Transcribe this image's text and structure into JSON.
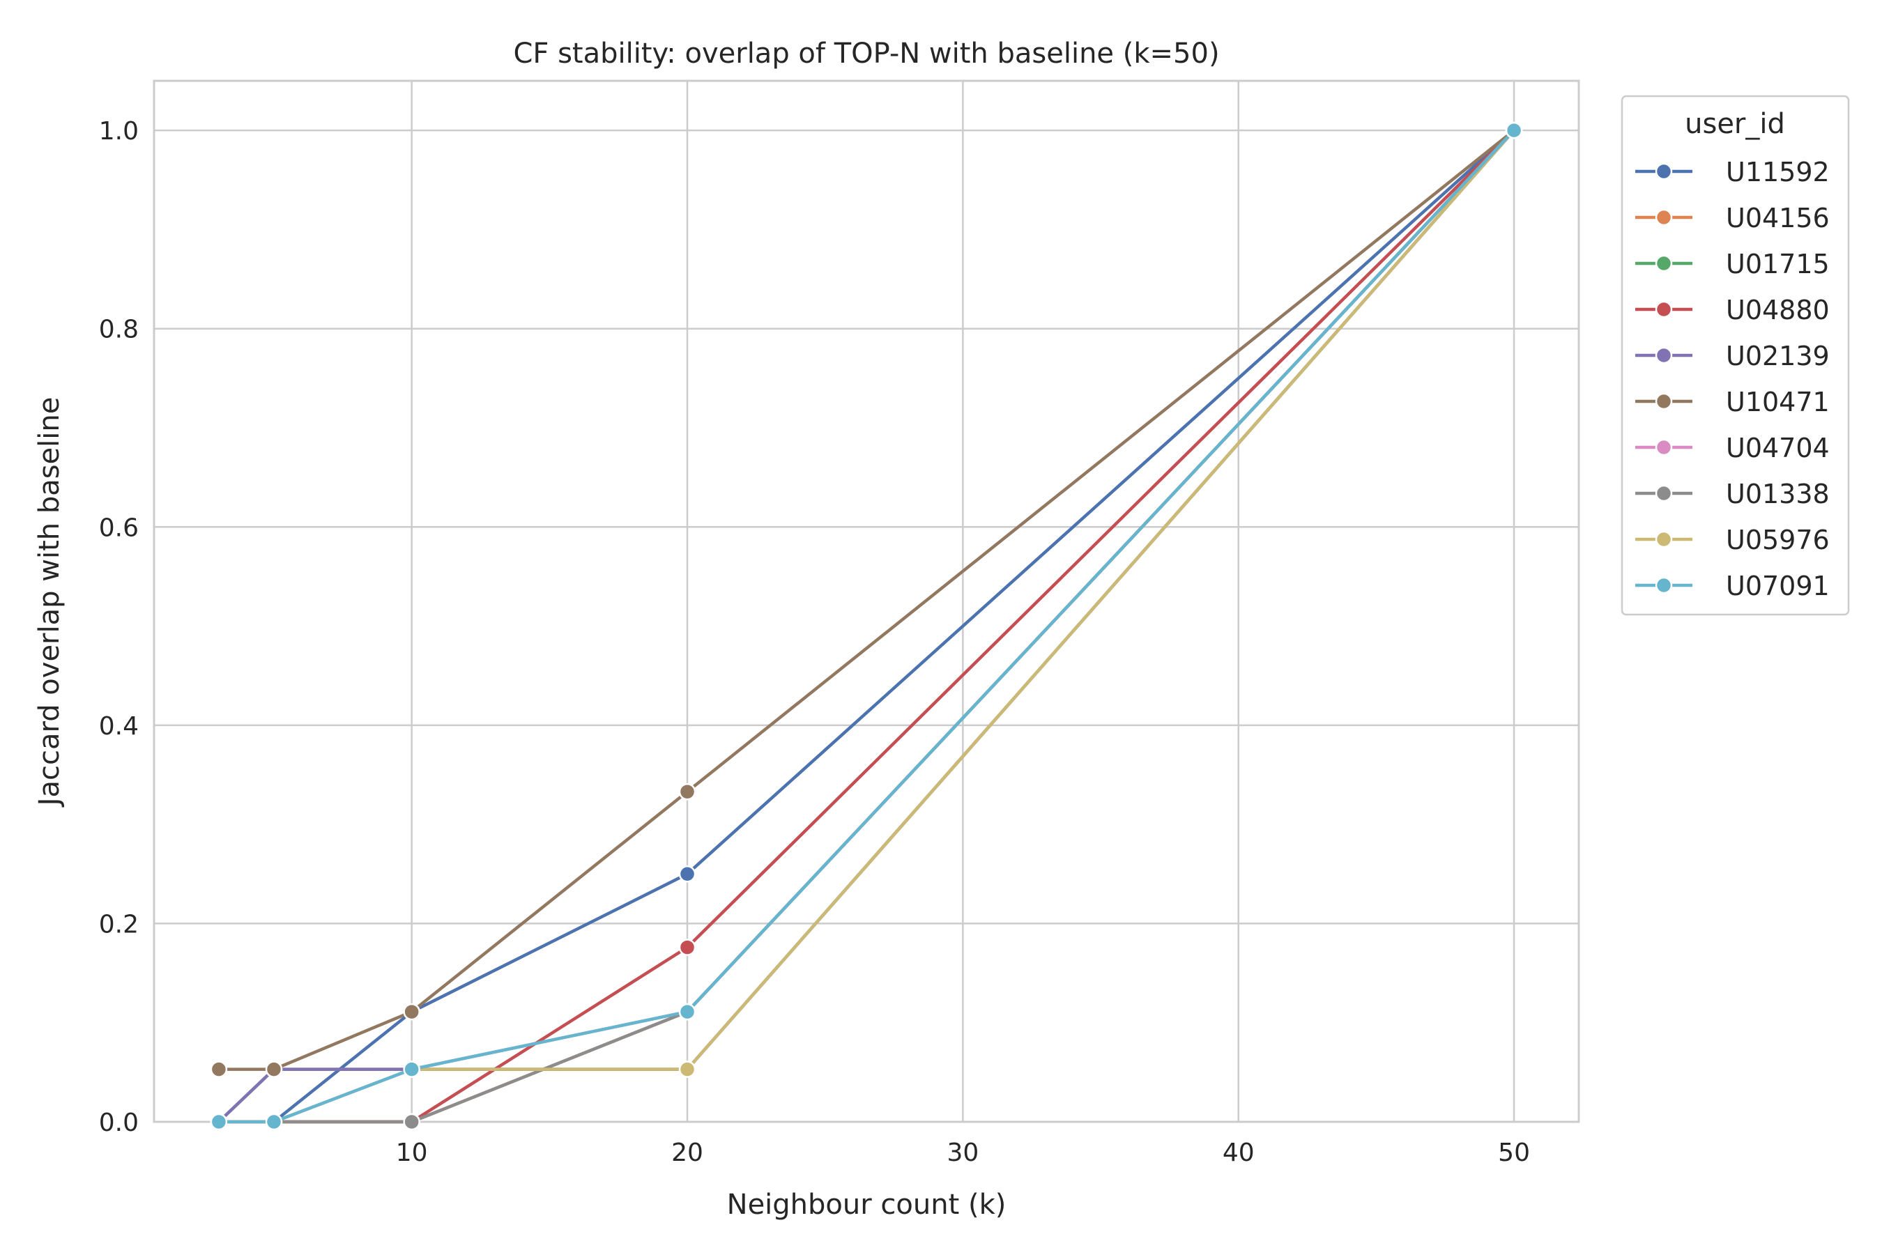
{
  "chart_data": {
    "type": "line",
    "title": "CF stability: overlap of TOP-N with baseline (k=50)",
    "xlabel": "Neighbour count (k)",
    "ylabel": "Jaccard overlap with baseline",
    "xlim": [
      0.65,
      52.35
    ],
    "ylim": [
      0.0,
      1.05
    ],
    "xticks": [
      10,
      20,
      30,
      40,
      50
    ],
    "yticks": [
      0.0,
      0.2,
      0.4,
      0.6,
      0.8,
      1.0
    ],
    "ytick_labels": [
      "0.0",
      "0.2",
      "0.4",
      "0.6",
      "0.8",
      "1.0"
    ],
    "grid": true,
    "legend": {
      "title": "user_id",
      "placement": "outside upper right"
    },
    "x": [
      3,
      5,
      10,
      20,
      50
    ],
    "series": [
      {
        "name": "U11592",
        "color": "#4c72b0",
        "values": [
          0.0,
          0.0,
          0.111,
          0.25,
          1.0
        ]
      },
      {
        "name": "U04156",
        "color": "#dd8452",
        "values": [
          0.0,
          0.0,
          0.0,
          0.111,
          1.0
        ]
      },
      {
        "name": "U01715",
        "color": "#55a868",
        "values": [
          0.0,
          0.053,
          0.053,
          0.053,
          1.0
        ]
      },
      {
        "name": "U04880",
        "color": "#c44e52",
        "values": [
          0.0,
          0.0,
          0.0,
          0.176,
          1.0
        ]
      },
      {
        "name": "U02139",
        "color": "#8172b3",
        "values": [
          0.0,
          0.053,
          0.053,
          0.053,
          1.0
        ]
      },
      {
        "name": "U10471",
        "color": "#937860",
        "values": [
          0.053,
          0.053,
          0.111,
          0.333,
          1.0
        ]
      },
      {
        "name": "U04704",
        "color": "#da8bc3",
        "values": [
          0.0,
          0.0,
          0.053,
          0.111,
          1.0
        ]
      },
      {
        "name": "U01338",
        "color": "#8c8c8c",
        "values": [
          0.0,
          0.0,
          0.0,
          0.111,
          1.0
        ]
      },
      {
        "name": "U05976",
        "color": "#ccb974",
        "values": [
          0.0,
          0.0,
          0.053,
          0.053,
          1.0
        ]
      },
      {
        "name": "U07091",
        "color": "#64b5cd",
        "values": [
          0.0,
          0.0,
          0.053,
          0.111,
          1.0
        ]
      }
    ]
  }
}
